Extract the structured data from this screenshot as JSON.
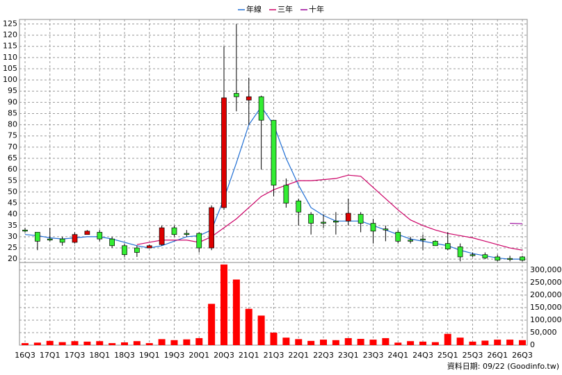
{
  "chart_data": {
    "type": "candlestick",
    "categories": [
      "16Q3",
      null,
      "17Q1",
      null,
      "17Q3",
      null,
      "18Q1",
      null,
      "18Q3",
      null,
      "19Q1",
      null,
      "19Q3",
      null,
      "20Q1",
      null,
      "20Q3",
      null,
      "21Q1",
      null,
      "21Q3",
      null,
      "22Q1",
      null,
      "22Q3",
      null,
      "23Q1",
      null,
      "23Q3",
      null,
      "24Q1",
      null,
      "24Q3",
      null,
      "25Q1",
      null,
      "25Q3",
      null,
      "26Q1",
      null,
      "26Q3"
    ],
    "open": [
      33,
      32,
      29,
      29,
      27.5,
      31,
      32,
      29,
      26,
      25,
      25,
      26.5,
      34,
      31.5,
      31.5,
      25,
      43,
      94,
      91,
      92.5,
      82,
      53,
      46,
      40,
      36.5,
      37,
      37,
      40,
      36,
      33.5,
      32,
      28.5,
      29,
      28,
      27,
      25.5,
      22,
      22,
      21,
      20.3,
      21
    ],
    "high": [
      34,
      32,
      34,
      30,
      32,
      33,
      33,
      30,
      27,
      26,
      26.5,
      35,
      35,
      33,
      32,
      44,
      115,
      125,
      101,
      93,
      82,
      56,
      47,
      41,
      40,
      41,
      47,
      41,
      38,
      35,
      33,
      30,
      31,
      28.5,
      32,
      27,
      23,
      23,
      22,
      21.5,
      21.5
    ],
    "low": [
      32,
      24,
      28,
      26,
      27,
      31,
      28,
      25,
      21,
      21,
      25,
      26,
      30,
      30,
      23,
      24,
      42,
      86,
      80,
      60,
      48,
      43,
      35,
      31,
      34,
      31,
      35,
      32,
      27,
      28,
      27,
      27,
      24,
      26,
      24,
      19,
      21,
      20,
      19,
      19,
      19
    ],
    "close": [
      32.5,
      28,
      28.5,
      27.5,
      31,
      32.5,
      29,
      26,
      22,
      23,
      26,
      34,
      31,
      31,
      25,
      43,
      92,
      92.5,
      92.5,
      82,
      53,
      45,
      41,
      36,
      36,
      36.5,
      40.5,
      36,
      32.5,
      33,
      28,
      28,
      28.5,
      26,
      24.5,
      21,
      21.8,
      20.5,
      19.5,
      20,
      19.5
    ],
    "up_color": "#dd0000",
    "down_color": "#33ee33",
    "series": [
      {
        "name": "年線",
        "color": "#1f6ed4",
        "values": [
          31,
          30.5,
          29.5,
          29,
          29.5,
          30,
          30,
          29,
          27.5,
          26,
          25,
          26,
          28,
          30,
          30.5,
          33,
          47,
          63,
          80,
          88,
          80,
          65,
          53,
          43,
          39.5,
          37,
          37,
          37,
          35,
          33,
          31,
          29,
          28,
          27,
          26,
          24,
          22.5,
          21.5,
          20.5,
          20,
          20
        ]
      },
      {
        "name": "三年",
        "color": "#cc0066",
        "values": [
          null,
          null,
          null,
          null,
          null,
          null,
          null,
          null,
          null,
          26.5,
          27.5,
          28.5,
          28.5,
          28.5,
          27.5,
          30,
          34,
          38,
          43,
          48,
          51,
          53,
          55,
          55,
          55.5,
          56,
          57.5,
          57,
          52,
          47,
          42,
          37.5,
          35,
          33,
          31.5,
          30.5,
          29.5,
          28,
          26.5,
          25,
          24
        ]
      },
      {
        "name": "十年",
        "color": "#990099",
        "values": [
          null,
          null,
          null,
          null,
          null,
          null,
          null,
          null,
          null,
          null,
          null,
          null,
          null,
          null,
          null,
          null,
          null,
          null,
          null,
          null,
          null,
          null,
          null,
          null,
          null,
          null,
          null,
          null,
          null,
          null,
          null,
          null,
          null,
          null,
          null,
          null,
          null,
          null,
          null,
          36,
          35.8
        ]
      }
    ],
    "ylim": [
      18.5,
      127
    ],
    "yticks": [
      20,
      25,
      30,
      35,
      40,
      45,
      50,
      55,
      60,
      65,
      70,
      75,
      80,
      85,
      90,
      95,
      100,
      105,
      110,
      115,
      120,
      125
    ],
    "volume": {
      "color": "#ff0000",
      "values": [
        8000,
        10000,
        17000,
        12000,
        16000,
        14000,
        16000,
        8000,
        11000,
        16000,
        8000,
        24000,
        20000,
        23000,
        28000,
        165000,
        322000,
        262000,
        145000,
        118000,
        50000,
        30000,
        24000,
        17000,
        22000,
        20000,
        28000,
        25000,
        22000,
        28000,
        10000,
        16000,
        14000,
        12000,
        45000,
        30000,
        14000,
        18000,
        22000,
        22000,
        20000
      ],
      "ylim": [
        0,
        330000
      ],
      "yticks": [
        0,
        {
          "value": 50000,
          "label": "50,000"
        },
        {
          "value": 100000,
          "label": "100,000"
        },
        {
          "value": 150000,
          "label": "150,000"
        },
        {
          "value": 200000,
          "label": "200,000"
        },
        {
          "value": 250000,
          "label": "250,000"
        },
        {
          "value": 300000,
          "label": "300,000"
        }
      ]
    },
    "grid": true,
    "note": "資料日期: 09/22 (Goodinfo.tw)"
  }
}
